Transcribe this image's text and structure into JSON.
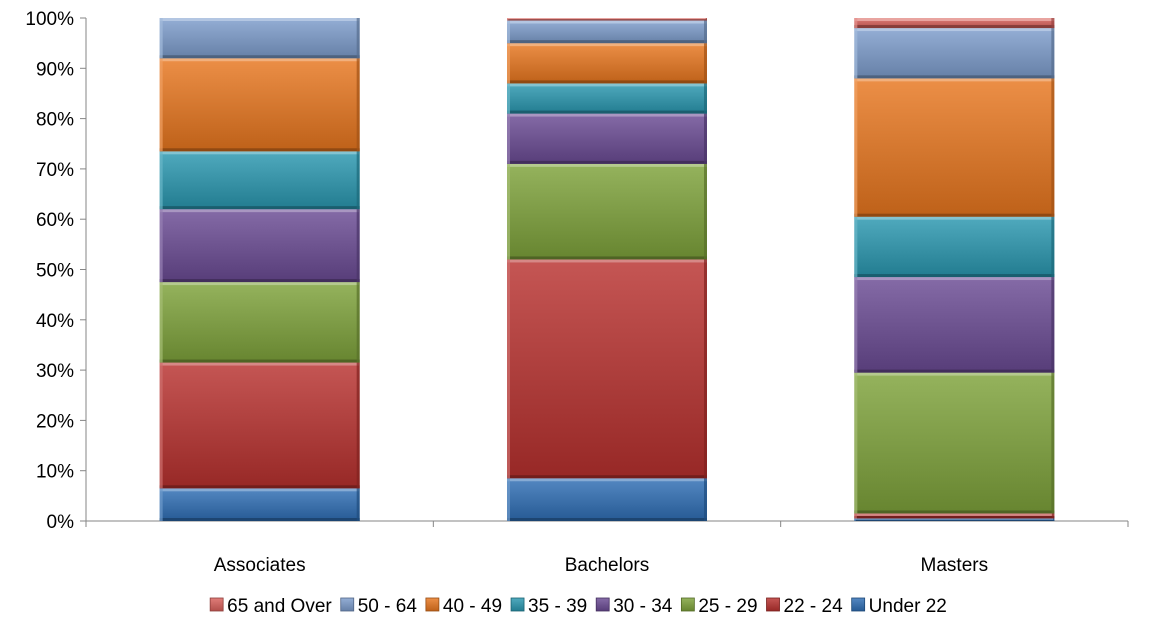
{
  "chart_data": {
    "type": "bar",
    "stacked": true,
    "percent_stacked": true,
    "title": "",
    "xlabel": "",
    "ylabel": "",
    "ylim": [
      0,
      100
    ],
    "y_ticks": [
      "0%",
      "10%",
      "20%",
      "30%",
      "40%",
      "50%",
      "60%",
      "70%",
      "80%",
      "90%",
      "100%"
    ],
    "grid": false,
    "legend_position": "bottom",
    "categories": [
      "Associates",
      "Bachelors",
      "Masters"
    ],
    "series": [
      {
        "name": "Under 22",
        "color": "#2E6EB5",
        "values": [
          6.5,
          8.5,
          0.5
        ]
      },
      {
        "name": "22 - 24",
        "color": "#B8312E",
        "values": [
          25,
          43.5,
          1.0
        ]
      },
      {
        "name": "25 - 29",
        "color": "#7EA23A",
        "values": [
          16,
          19,
          28
        ]
      },
      {
        "name": "30 - 34",
        "color": "#6A4A94",
        "values": [
          14.5,
          10,
          19
        ]
      },
      {
        "name": "35 - 39",
        "color": "#2A97B0",
        "values": [
          11.5,
          6,
          12
        ]
      },
      {
        "name": "40 - 49",
        "color": "#E8761E",
        "values": [
          18.5,
          8,
          27.5
        ]
      },
      {
        "name": "50 - 64",
        "color": "#7C9CCC",
        "values": [
          8,
          4.5,
          10
        ]
      },
      {
        "name": "65 and Over",
        "color": "#D9605B",
        "values": [
          0,
          0.5,
          2
        ]
      }
    ],
    "legend_order": [
      "65 and Over",
      "50 - 64",
      "40 - 49",
      "35 - 39",
      "30 - 34",
      "25 - 29",
      "22 - 24",
      "Under 22"
    ]
  }
}
